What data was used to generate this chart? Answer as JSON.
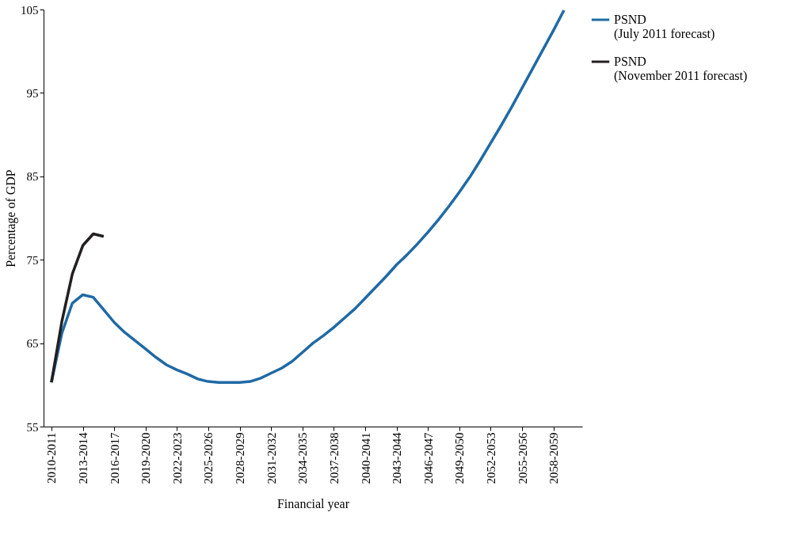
{
  "chart_data": {
    "type": "line",
    "xlabel": "Financial year",
    "ylabel": "Percentage of GDP",
    "categories": [
      "2010-2011",
      null,
      null,
      "2013-2014",
      null,
      null,
      "2016-2017",
      null,
      null,
      "2019-2020",
      null,
      null,
      "2022-2023",
      null,
      null,
      "2025-2026",
      null,
      null,
      "2028-2029",
      null,
      null,
      "2031-2032",
      null,
      null,
      "2034-2035",
      null,
      null,
      "2037-2038",
      null,
      null,
      "2040-2041",
      null,
      null,
      "2043-2044",
      null,
      null,
      "2046-2047",
      null,
      null,
      "2049-2050",
      null,
      null,
      "2052-2053",
      null,
      null,
      "2055-2056",
      null,
      null,
      "2058-2059",
      null,
      null
    ],
    "series": [
      {
        "name": "PSND (July 2011 forecast)",
        "color": "#1f6aa5",
        "values": [
          60.3,
          66.2,
          69.8,
          70.8,
          70.5,
          69.0,
          67.5,
          66.3,
          65.3,
          64.3,
          63.3,
          62.4,
          61.8,
          61.3,
          60.7,
          60.4,
          60.3,
          60.3,
          60.3,
          60.4,
          60.8,
          61.4,
          62.0,
          62.8,
          63.9,
          65.0,
          65.9,
          66.9,
          68.0,
          69.1,
          70.4,
          71.7,
          73.0,
          74.4,
          75.6,
          76.9,
          78.3,
          79.8,
          81.4,
          83.1,
          84.9,
          86.9,
          89.0,
          91.1,
          93.3,
          95.6,
          97.9,
          100.2,
          102.5,
          104.9,
          null
        ]
      },
      {
        "name": "PSND (November 2011 forecast)",
        "color": "#231f20",
        "values": [
          60.3,
          67.6,
          73.3,
          76.7,
          78.1,
          77.8,
          null,
          null,
          null,
          null,
          null,
          null,
          null,
          null,
          null,
          null,
          null,
          null,
          null,
          null,
          null,
          null,
          null,
          null,
          null,
          null,
          null,
          null,
          null,
          null,
          null,
          null,
          null,
          null,
          null,
          null,
          null,
          null,
          null,
          null,
          null,
          null,
          null,
          null,
          null,
          null,
          null,
          null,
          null,
          null,
          null
        ]
      }
    ],
    "ylim": [
      55,
      105
    ],
    "yticks": [
      55,
      65,
      75,
      85,
      95,
      105
    ],
    "grid": false,
    "legend": "right",
    "marker": "none",
    "line_style": "solid"
  }
}
